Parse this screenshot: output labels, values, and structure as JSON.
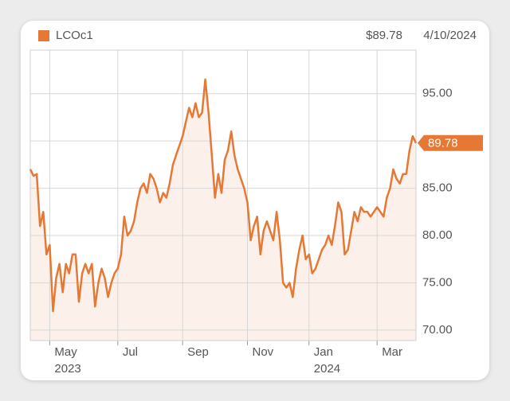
{
  "chart_data": {
    "type": "line",
    "last_label": "$89.78",
    "date": "4/10/2024",
    "categories": [
      null,
      null,
      null,
      null,
      null,
      null,
      "May 2023",
      null,
      null,
      null,
      null,
      null,
      null,
      null,
      null,
      null,
      null,
      null,
      null,
      null,
      null,
      null,
      null,
      null,
      null,
      null,
      null,
      "Jul",
      null,
      null,
      null,
      null,
      null,
      null,
      null,
      null,
      null,
      null,
      null,
      null,
      null,
      null,
      null,
      null,
      null,
      null,
      null,
      "Sep",
      null,
      null,
      null,
      null,
      null,
      null,
      null,
      null,
      null,
      null,
      null,
      null,
      null,
      null,
      null,
      null,
      null,
      null,
      null,
      "Nov",
      null,
      null,
      null,
      null,
      null,
      null,
      null,
      null,
      null,
      null,
      null,
      null,
      null,
      null,
      null,
      null,
      null,
      null,
      "Jan 2024",
      null,
      null,
      null,
      null,
      null,
      null,
      null,
      null,
      null,
      null,
      null,
      null,
      null,
      null,
      null,
      null,
      null,
      null,
      null,
      null,
      "Mar",
      null,
      null,
      null,
      null,
      null,
      null,
      null,
      null,
      null,
      null,
      null,
      null
    ],
    "series": [
      {
        "name": "LCOc1",
        "color": "#e57835",
        "values": [
          87,
          86.3,
          86.5,
          81,
          82.5,
          78,
          79,
          72,
          75.5,
          77,
          74,
          77,
          76,
          78,
          78,
          73,
          76,
          77,
          76,
          77,
          72.5,
          75,
          76.5,
          75.5,
          73.5,
          75,
          76,
          76.5,
          78,
          82,
          80,
          80.5,
          81.5,
          83.5,
          85,
          85.5,
          84.5,
          86.5,
          86,
          85,
          83.5,
          84.5,
          84,
          85.5,
          87.5,
          88.5,
          89.5,
          90.5,
          92,
          93.5,
          92.5,
          94,
          92.5,
          93,
          96.5,
          93,
          88.5,
          84,
          86.5,
          84.5,
          88,
          89,
          91,
          88.5,
          87,
          86,
          85,
          83.5,
          79.5,
          81,
          82,
          78,
          80.5,
          81.5,
          80.5,
          79.5,
          82.5,
          79.5,
          75,
          74.5,
          75,
          73.5,
          76.5,
          78.5,
          80,
          77.5,
          78,
          76,
          76.5,
          77.5,
          78.5,
          79,
          80,
          79,
          81,
          83.5,
          82.5,
          78,
          78.5,
          80.5,
          82.5,
          81.5,
          83,
          82.5,
          82.5,
          82,
          82.5,
          83,
          82.5,
          82,
          84,
          85,
          87,
          86,
          85.5,
          86.5,
          86.5,
          89,
          90.5,
          89.78
        ]
      }
    ],
    "ylim": [
      68.9,
      99.6
    ],
    "yticks": [
      {
        "value": 70,
        "label": "70.00"
      },
      {
        "value": 75,
        "label": "75.00"
      },
      {
        "value": 80,
        "label": "80.00"
      },
      {
        "value": 85,
        "label": "85.00"
      },
      {
        "value": 90,
        "label": "90.00"
      },
      {
        "value": 95,
        "label": "95.00"
      }
    ],
    "grid": true
  }
}
